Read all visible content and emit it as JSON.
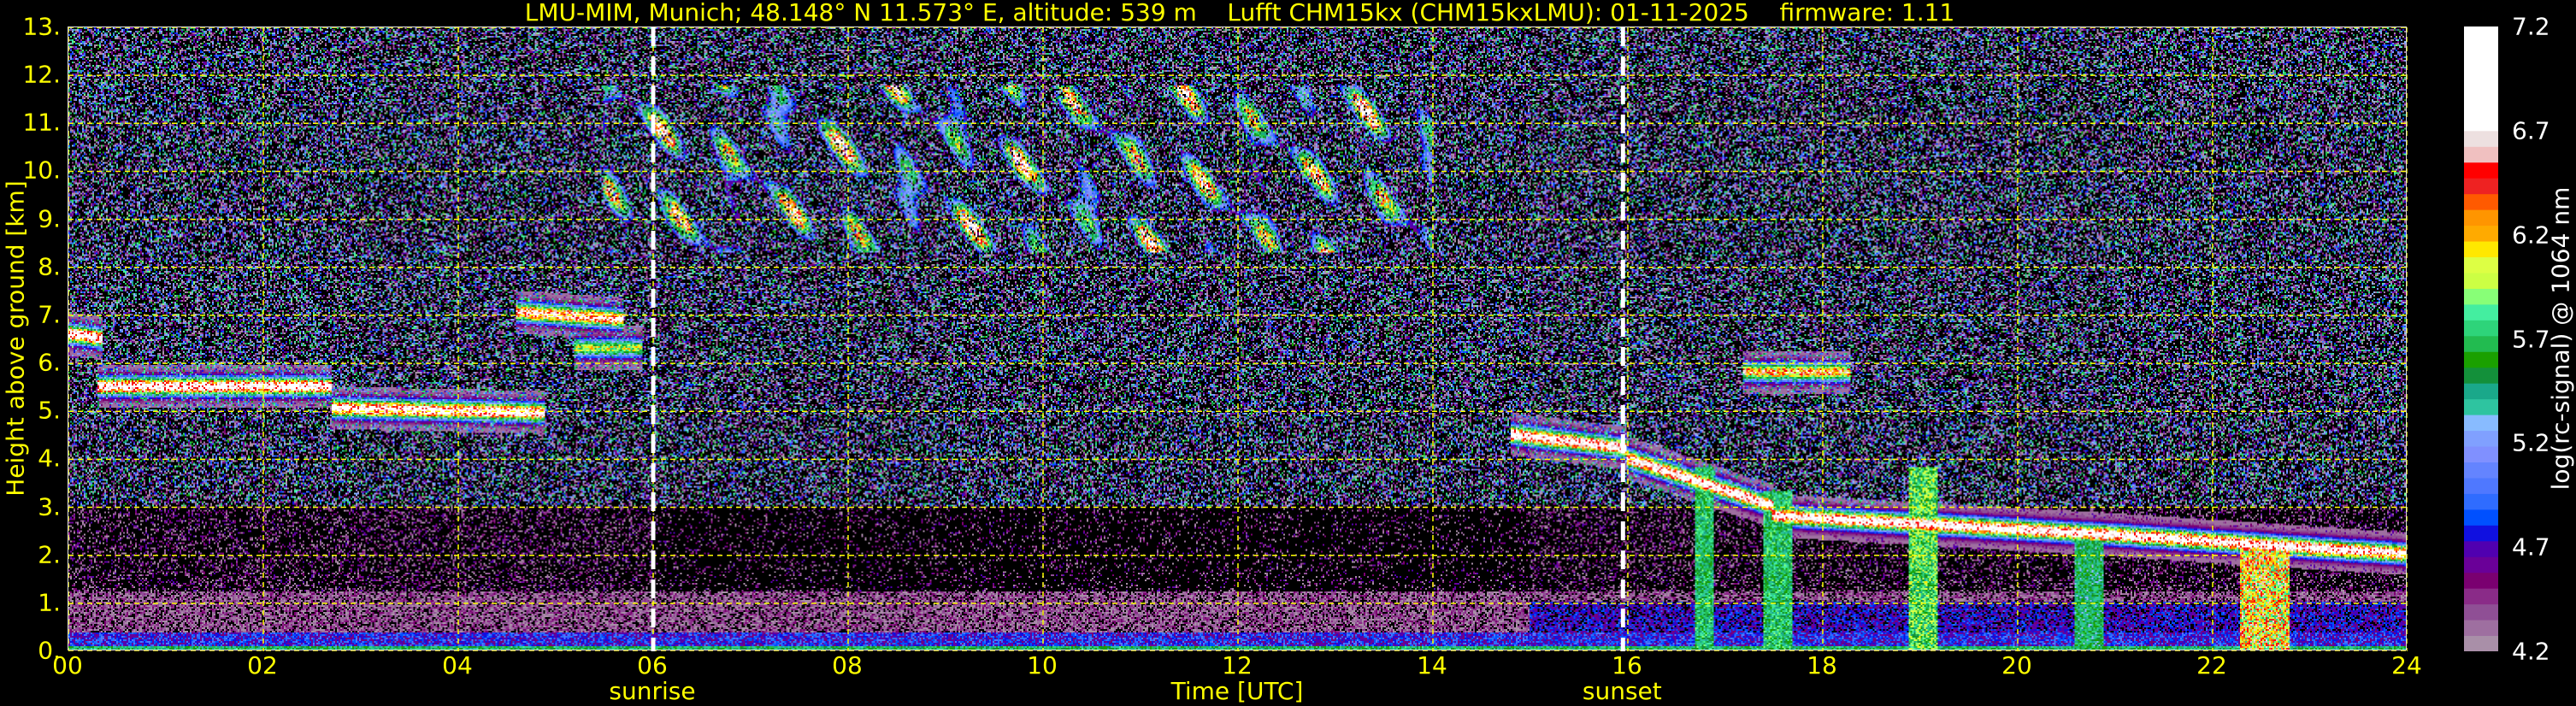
{
  "title": "LMU-MIM, Munich; 48.148° N 11.573° E, altitude: 539 m    Lufft CHM15kx (CHM15kxLMU): 01-11-2025    firmware: 1.11",
  "chart_data": {
    "type": "heatmap",
    "title": "LMU-MIM, Munich; 48.148° N 11.573° E, altitude: 539 m    Lufft CHM15kx (CHM15kxLMU): 01-11-2025    firmware: 1.11",
    "xlabel": "Time [UTC]",
    "ylabel": "Height above ground [km]",
    "xlim": [
      0,
      24
    ],
    "ylim": [
      0,
      13
    ],
    "xticks": [
      "00",
      "02",
      "04",
      "06",
      "08",
      "10",
      "12",
      "14",
      "16",
      "18",
      "20",
      "22",
      "24"
    ],
    "xtick_values": [
      0,
      2,
      4,
      6,
      8,
      10,
      12,
      14,
      16,
      18,
      20,
      22,
      24
    ],
    "yticks": [
      "0.",
      "1.",
      "2.",
      "3.",
      "4.",
      "5.",
      "6.",
      "7.",
      "8.",
      "9.",
      "10.",
      "11.",
      "12.",
      "13."
    ],
    "ytick_values": [
      0,
      1,
      2,
      3,
      4,
      5,
      6,
      7,
      8,
      9,
      10,
      11,
      12,
      13
    ],
    "grid": true,
    "grid_color": "#ffff00",
    "annotations": [
      {
        "label": "sunrise",
        "time": 6.0,
        "color": "#ffffff"
      },
      {
        "label": "sunset",
        "time": 15.95,
        "color": "#ffffff"
      }
    ],
    "colorbar": {
      "label": "log(rc-signal) @ 1064 nm",
      "range": [
        4.2,
        7.2
      ],
      "ticks": [
        "4.2",
        "4.7",
        "5.2",
        "5.7",
        "6.2",
        "6.7",
        "7.2"
      ],
      "tick_values": [
        4.2,
        4.7,
        5.2,
        5.7,
        6.2,
        6.7,
        7.2
      ],
      "colors": [
        "#a98fa8",
        "#9e6fa0",
        "#8f4f95",
        "#8a2b88",
        "#7a0070",
        "#6a0098",
        "#5000b0",
        "#1010e0",
        "#0050ff",
        "#2f6cff",
        "#4f78ff",
        "#6484ff",
        "#8090ff",
        "#80a0ff",
        "#88bbff",
        "#2ec4a0",
        "#1aa88a",
        "#13903a",
        "#1aa000",
        "#22bb50",
        "#2ed47a",
        "#44eea0",
        "#88ff77",
        "#ccff44",
        "#ddff44",
        "#ffe800",
        "#ffaa00",
        "#ff9500",
        "#ff5a00",
        "#ee2222",
        "#ff0000",
        "#f0c0c0",
        "#ede0e0",
        "#ffffff"
      ]
    },
    "features": [
      {
        "kind": "layer",
        "t": [
          0.0,
          0.35
        ],
        "h": [
          6.6,
          6.5
        ],
        "peak": 7.0
      },
      {
        "kind": "layer",
        "t": [
          0.3,
          2.7
        ],
        "h": [
          5.5,
          5.5
        ],
        "peak": 7.0
      },
      {
        "kind": "layer",
        "t": [
          2.7,
          4.9
        ],
        "h": [
          5.05,
          4.95
        ],
        "peak": 7.0
      },
      {
        "kind": "layer",
        "t": [
          4.6,
          5.7
        ],
        "h": [
          7.05,
          6.9
        ],
        "peak": 6.8
      },
      {
        "kind": "layer",
        "t": [
          5.2,
          5.9
        ],
        "h": [
          6.3,
          6.3
        ],
        "peak": 6.0
      },
      {
        "kind": "cirrus",
        "t": [
          5.5,
          14.0
        ],
        "h": [
          8.3,
          11.8
        ],
        "peak": 6.6
      },
      {
        "kind": "layer",
        "t": [
          14.8,
          16.0
        ],
        "h": [
          4.5,
          4.2
        ],
        "peak": 7.0
      },
      {
        "kind": "layer",
        "t": [
          16.0,
          17.5
        ],
        "h": [
          4.0,
          3.0
        ],
        "peak": 7.0
      },
      {
        "kind": "layer",
        "t": [
          17.5,
          21.0
        ],
        "h": [
          2.8,
          2.4
        ],
        "peak": 7.0
      },
      {
        "kind": "layer",
        "t": [
          21.0,
          24.0
        ],
        "h": [
          2.4,
          2.0
        ],
        "peak": 7.0
      },
      {
        "kind": "layer",
        "t": [
          17.2,
          18.3
        ],
        "h": [
          5.8,
          5.8
        ],
        "peak": 6.4
      },
      {
        "kind": "streak",
        "t": [
          16.7,
          16.9
        ],
        "h": [
          0.0,
          3.8
        ],
        "peak": 5.8
      },
      {
        "kind": "streak",
        "t": [
          17.4,
          17.7
        ],
        "h": [
          0.0,
          3.3
        ],
        "peak": 5.8
      },
      {
        "kind": "streak",
        "t": [
          18.9,
          19.2
        ],
        "h": [
          0.0,
          3.8
        ],
        "peak": 6.0
      },
      {
        "kind": "streak",
        "t": [
          20.6,
          20.9
        ],
        "h": [
          0.0,
          2.4
        ],
        "peak": 5.7
      },
      {
        "kind": "streak",
        "t": [
          22.3,
          22.8
        ],
        "h": [
          0.0,
          2.2
        ],
        "peak": 6.5
      }
    ]
  }
}
